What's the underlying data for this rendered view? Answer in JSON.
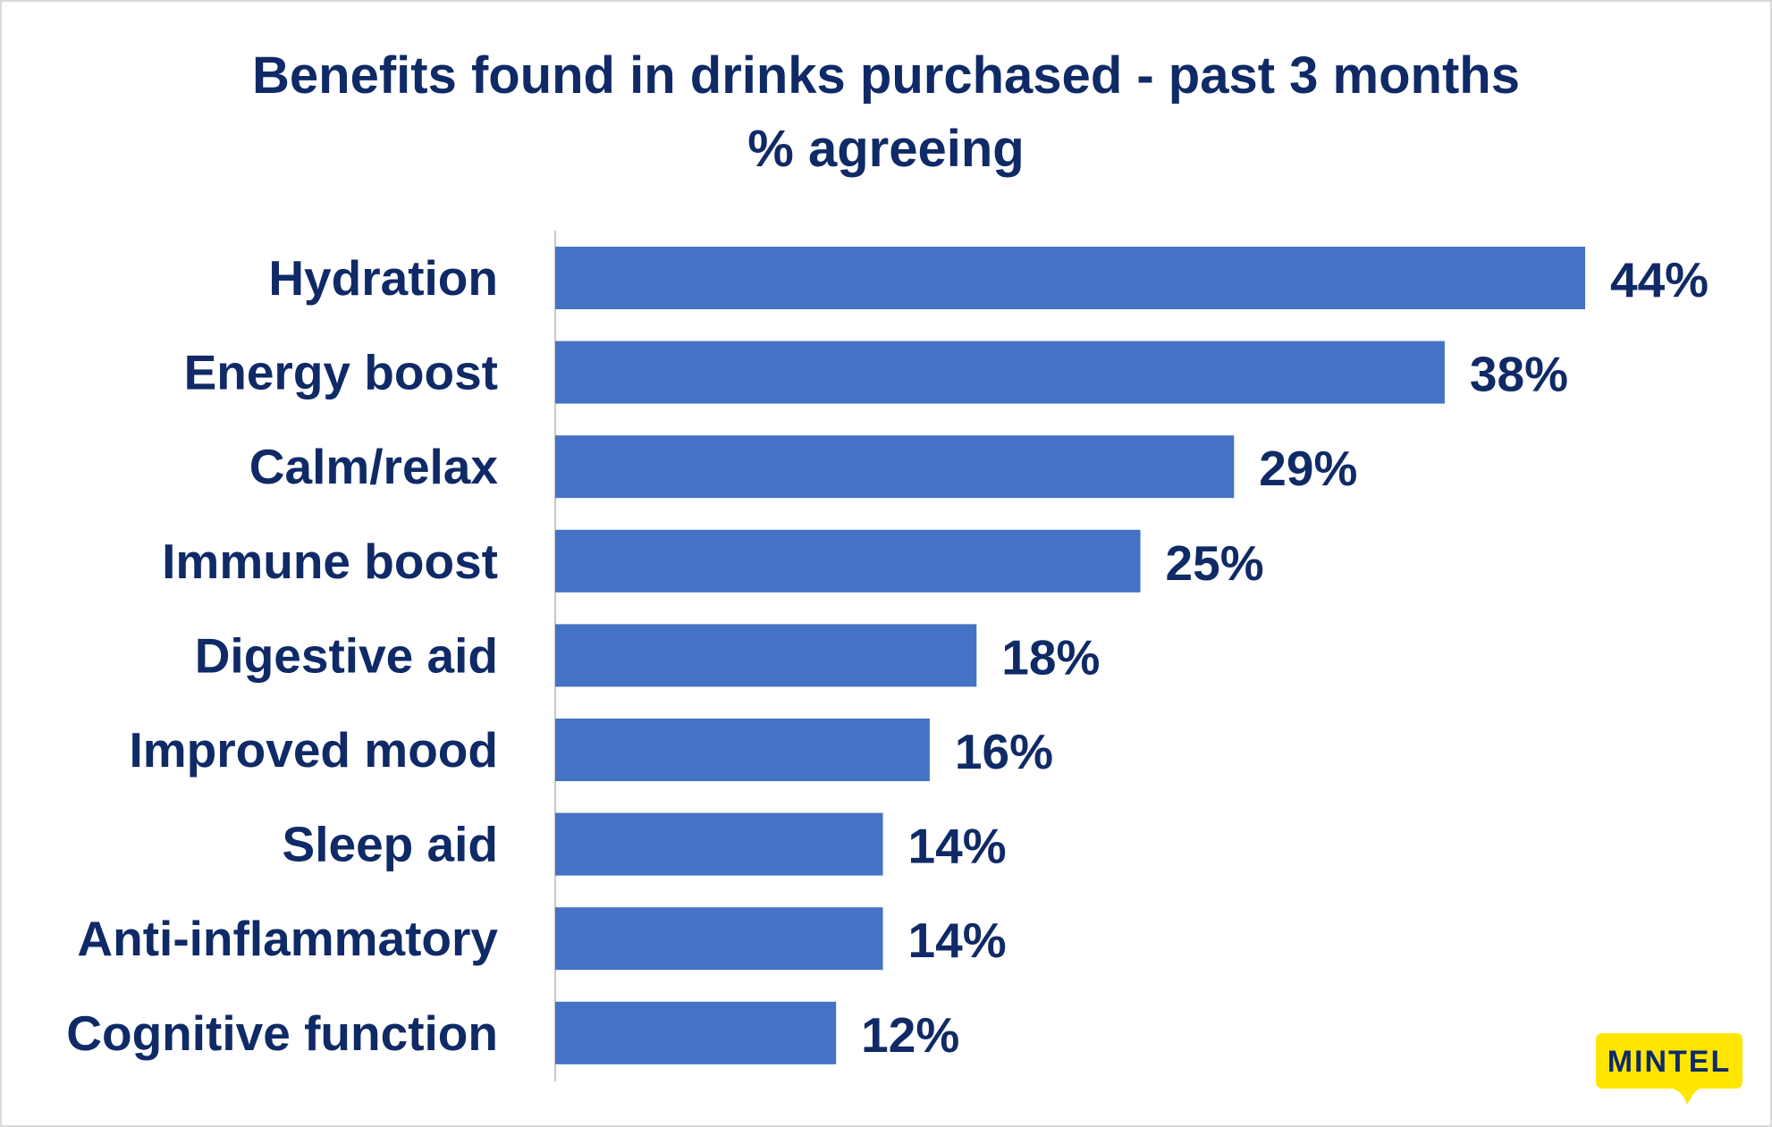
{
  "chart_data": {
    "type": "bar",
    "orientation": "horizontal",
    "title": "Benefits found in drinks purchased - past 3 months",
    "subtitle": "% agreeing",
    "categories": [
      "Hydration",
      "Energy boost",
      "Calm/relax",
      "Immune boost",
      "Digestive aid",
      "Improved mood",
      "Sleep aid",
      "Anti-inflammatory",
      "Cognitive function"
    ],
    "values": [
      44,
      38,
      29,
      25,
      18,
      16,
      14,
      14,
      12
    ],
    "value_labels": [
      "44%",
      "38%",
      "29%",
      "25%",
      "18%",
      "16%",
      "14%",
      "14%",
      "12%"
    ],
    "unit": "%",
    "xlim": [
      0,
      44
    ],
    "grid": false,
    "legend": "none",
    "bar_color": "#4472c4",
    "text_color": "#0f2a66"
  },
  "branding": {
    "logo_text": "MINTEL",
    "logo_color": "#ffe600"
  }
}
